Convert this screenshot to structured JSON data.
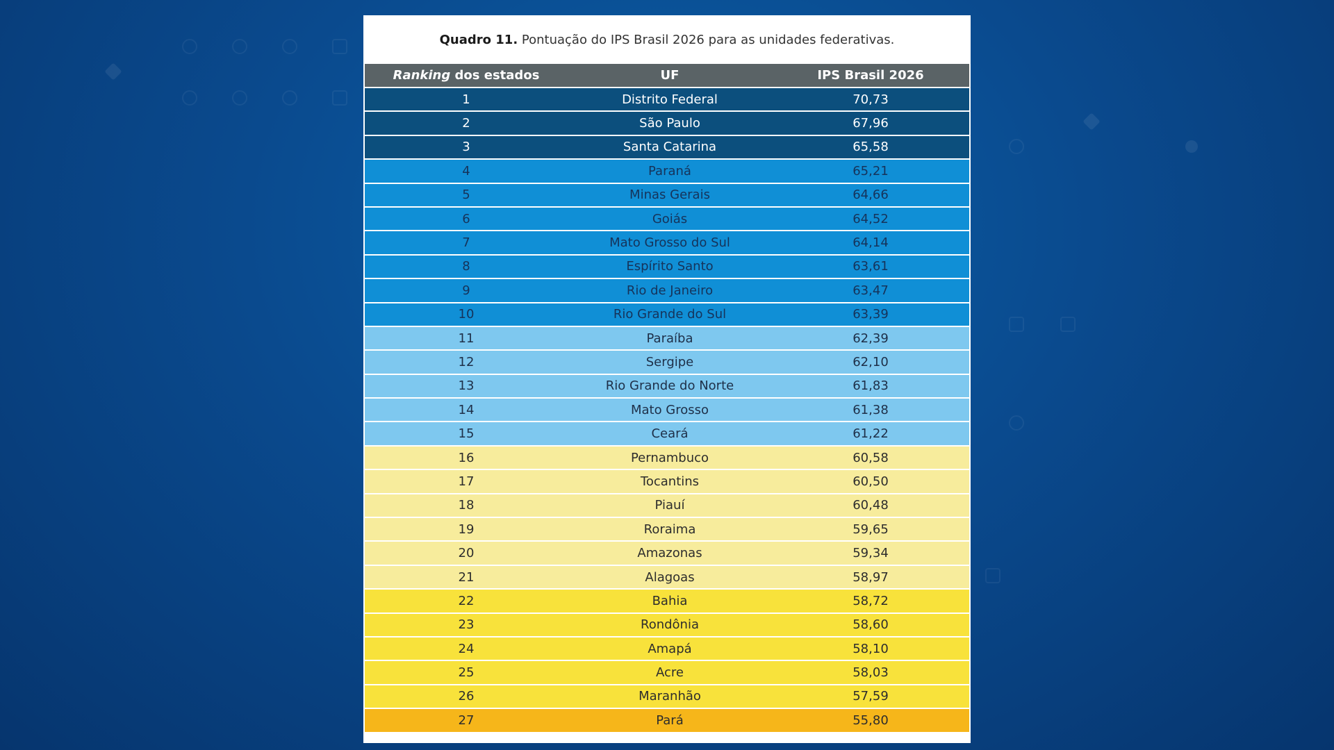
{
  "caption": {
    "label": "Quadro 11.",
    "text": " Pontuação do IPS Brasil 2026 para as unidades federativas."
  },
  "table": {
    "headers": {
      "ranking_italic": "Ranking",
      "ranking_rest": " dos estados",
      "uf": "UF",
      "score": "IPS Brasil 2026"
    },
    "tier_colors": {
      "t1": "#0c4f7d",
      "t2": "#108fd6",
      "t3": "#7ec8ef",
      "t4": "#f7ec9c",
      "t5": "#f8e23b",
      "t6": "#f6b61a"
    },
    "rows": [
      {
        "rank": "1",
        "uf": "Distrito Federal",
        "score": "70,73",
        "tier": "t1"
      },
      {
        "rank": "2",
        "uf": "São Paulo",
        "score": "67,96",
        "tier": "t1"
      },
      {
        "rank": "3",
        "uf": "Santa Catarina",
        "score": "65,58",
        "tier": "t1"
      },
      {
        "rank": "4",
        "uf": "Paraná",
        "score": "65,21",
        "tier": "t2"
      },
      {
        "rank": "5",
        "uf": "Minas Gerais",
        "score": "64,66",
        "tier": "t2"
      },
      {
        "rank": "6",
        "uf": "Goiás",
        "score": "64,52",
        "tier": "t2"
      },
      {
        "rank": "7",
        "uf": "Mato Grosso do Sul",
        "score": "64,14",
        "tier": "t2"
      },
      {
        "rank": "8",
        "uf": "Espírito Santo",
        "score": "63,61",
        "tier": "t2"
      },
      {
        "rank": "9",
        "uf": "Rio de Janeiro",
        "score": "63,47",
        "tier": "t2"
      },
      {
        "rank": "10",
        "uf": "Rio Grande do Sul",
        "score": "63,39",
        "tier": "t2"
      },
      {
        "rank": "11",
        "uf": "Paraíba",
        "score": "62,39",
        "tier": "t3"
      },
      {
        "rank": "12",
        "uf": "Sergipe",
        "score": "62,10",
        "tier": "t3"
      },
      {
        "rank": "13",
        "uf": "Rio Grande do Norte",
        "score": "61,83",
        "tier": "t3"
      },
      {
        "rank": "14",
        "uf": "Mato Grosso",
        "score": "61,38",
        "tier": "t3"
      },
      {
        "rank": "15",
        "uf": "Ceará",
        "score": "61,22",
        "tier": "t3"
      },
      {
        "rank": "16",
        "uf": "Pernambuco",
        "score": "60,58",
        "tier": "t4"
      },
      {
        "rank": "17",
        "uf": "Tocantins",
        "score": "60,50",
        "tier": "t4"
      },
      {
        "rank": "18",
        "uf": "Piauí",
        "score": "60,48",
        "tier": "t4"
      },
      {
        "rank": "19",
        "uf": "Roraima",
        "score": "59,65",
        "tier": "t4"
      },
      {
        "rank": "20",
        "uf": "Amazonas",
        "score": "59,34",
        "tier": "t4"
      },
      {
        "rank": "21",
        "uf": "Alagoas",
        "score": "58,97",
        "tier": "t4"
      },
      {
        "rank": "22",
        "uf": "Bahia",
        "score": "58,72",
        "tier": "t5"
      },
      {
        "rank": "23",
        "uf": "Rondônia",
        "score": "58,60",
        "tier": "t5"
      },
      {
        "rank": "24",
        "uf": "Amapá",
        "score": "58,10",
        "tier": "t5"
      },
      {
        "rank": "25",
        "uf": "Acre",
        "score": "58,03",
        "tier": "t5"
      },
      {
        "rank": "26",
        "uf": "Maranhão",
        "score": "57,59",
        "tier": "t5"
      },
      {
        "rank": "27",
        "uf": "Pará",
        "score": "55,80",
        "tier": "t6"
      }
    ]
  }
}
